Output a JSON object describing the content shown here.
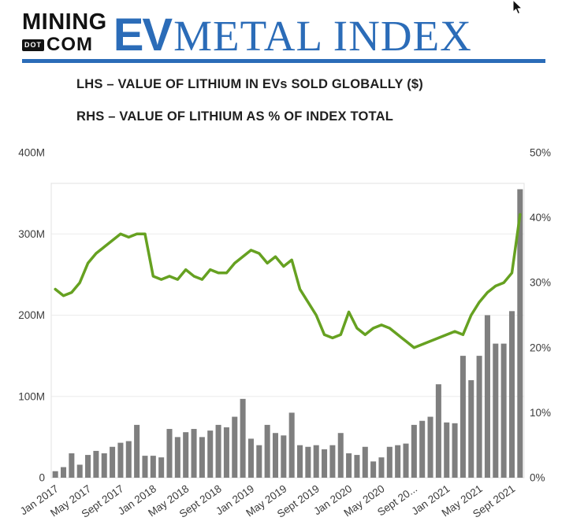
{
  "header": {
    "logo": {
      "line1": "MINING",
      "dot": "DOT",
      "com": "COM"
    },
    "title_ev": "EV",
    "title_rest": "METAL INDEX",
    "accent_blue": "#2b6cb8"
  },
  "subtitles": {
    "lhs": "LHS – VALUE OF LITHIUM IN EVs SOLD GLOBALLY ($)",
    "rhs": "RHS – VALUE OF LITHIUM AS % OF INDEX TOTAL"
  },
  "chart_data": {
    "type": "bar",
    "subtype": "combo-bar-line-dual-axis",
    "title": "EV Metal Index – Lithium",
    "categories": [
      "Jan 2017",
      "Feb 2017",
      "Mar 2017",
      "Apr 2017",
      "May 2017",
      "Jun 2017",
      "Jul 2017",
      "Aug 2017",
      "Sep 2017",
      "Oct 2017",
      "Nov 2017",
      "Dec 2017",
      "Jan 2018",
      "Feb 2018",
      "Mar 2018",
      "Apr 2018",
      "May 2018",
      "Jun 2018",
      "Jul 2018",
      "Aug 2018",
      "Sep 2018",
      "Oct 2018",
      "Nov 2018",
      "Dec 2018",
      "Jan 2019",
      "Feb 2019",
      "Mar 2019",
      "Apr 2019",
      "May 2019",
      "Jun 2019",
      "Jul 2019",
      "Aug 2019",
      "Sep 2019",
      "Oct 2019",
      "Nov 2019",
      "Dec 2019",
      "Jan 2020",
      "Feb 2020",
      "Mar 2020",
      "Apr 2020",
      "May 2020",
      "Jun 2020",
      "Jul 2020",
      "Aug 2020",
      "Sep 2020",
      "Oct 2020",
      "Nov 2020",
      "Dec 2020",
      "Jan 2021",
      "Feb 2021",
      "Mar 2021",
      "Apr 2021",
      "May 2021",
      "Jun 2021",
      "Jul 2021",
      "Aug 2021",
      "Sep 2021",
      "Oct 2021"
    ],
    "series": [
      {
        "name": "Value of lithium in EVs sold globally ($M, LHS)",
        "type": "bar",
        "axis": "left",
        "color": "#7f7f7f",
        "values": [
          8,
          13,
          30,
          16,
          28,
          33,
          30,
          38,
          43,
          45,
          65,
          27,
          27,
          25,
          60,
          50,
          56,
          60,
          50,
          58,
          65,
          62,
          75,
          97,
          48,
          40,
          65,
          55,
          52,
          80,
          40,
          38,
          40,
          35,
          40,
          55,
          30,
          28,
          38,
          20,
          25,
          38,
          40,
          42,
          65,
          70,
          75,
          115,
          68,
          67,
          150,
          120,
          150,
          200,
          165,
          165,
          205,
          355
        ]
      },
      {
        "name": "Value of lithium as % of index total (RHS)",
        "type": "line",
        "axis": "right",
        "color": "#66a121",
        "values": [
          29,
          28,
          28.5,
          30,
          33,
          34.5,
          35.5,
          36.5,
          37.5,
          37,
          37.5,
          37.5,
          31,
          30.5,
          31,
          30.5,
          32,
          31,
          30.5,
          32,
          31.5,
          31.5,
          33,
          34,
          35,
          34.5,
          33,
          34,
          32.5,
          33.5,
          29,
          27,
          25,
          22,
          21.5,
          22,
          25.5,
          23,
          22,
          23,
          23.5,
          23,
          22,
          21,
          20,
          20.5,
          21,
          21.5,
          22,
          22.5,
          22,
          25,
          27,
          28.5,
          29.5,
          30,
          31.5,
          40.5
        ]
      }
    ],
    "left_axis": {
      "max": 400,
      "tick_values": [
        400,
        300,
        200,
        100,
        0
      ],
      "tick_labels": [
        "400M",
        "300M",
        "200M",
        "100M",
        "0"
      ]
    },
    "right_axis": {
      "max": 50,
      "tick_values": [
        50,
        40,
        30,
        20,
        10,
        0
      ],
      "tick_labels": [
        "50%",
        "40%",
        "30%",
        "20%",
        "10%",
        "0%"
      ]
    },
    "x_tick_indices": [
      0,
      4,
      8,
      12,
      16,
      20,
      24,
      28,
      32,
      36,
      40,
      44,
      48,
      52,
      56
    ],
    "x_tick_labels": [
      "Jan 2017",
      "May 2017",
      "Sept 2017",
      "Jan 2018",
      "May 2018",
      "Sept 2018",
      "Jan 2019",
      "May 2019",
      "Sept 2019",
      "Jan 2020",
      "May 2020",
      "Sept 20...",
      "Jan 2021",
      "May 2021",
      "Sept 2021"
    ],
    "grid": true,
    "legend_position": "none"
  }
}
